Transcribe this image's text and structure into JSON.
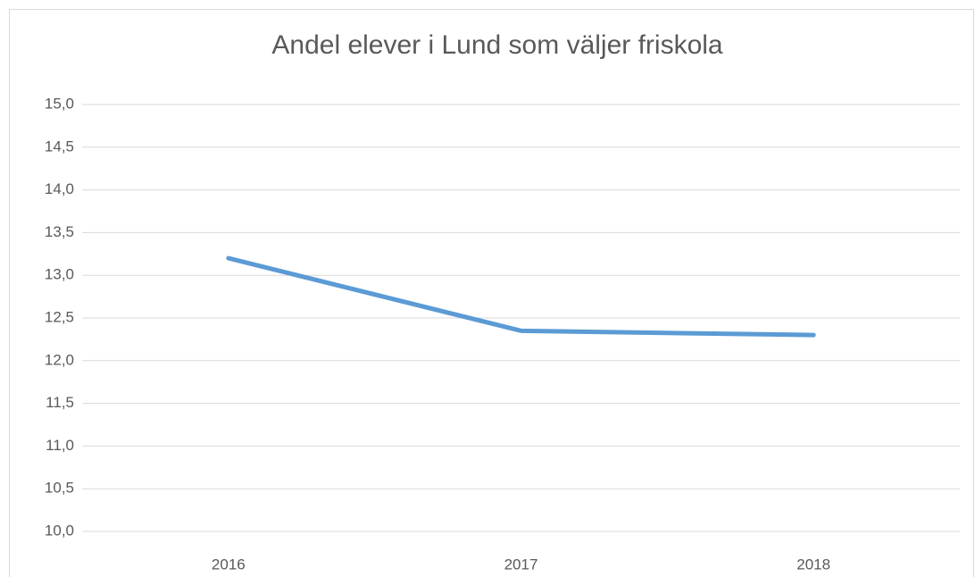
{
  "chart_data": {
    "type": "line",
    "title": "Andel elever i Lund som väljer friskola",
    "categories": [
      "2016",
      "2017",
      "2018"
    ],
    "series": [
      {
        "name": "Andel",
        "color": "#5b9bd5",
        "values": [
          13.2,
          12.35,
          12.3
        ]
      }
    ],
    "ylim": [
      10,
      15
    ],
    "yticks": [
      {
        "value": 10,
        "label": "10,0"
      },
      {
        "value": 10.5,
        "label": "10,5"
      },
      {
        "value": 11,
        "label": "11,0"
      },
      {
        "value": 11.5,
        "label": "11,5"
      },
      {
        "value": 12,
        "label": "12,0"
      },
      {
        "value": 12.5,
        "label": "12,5"
      },
      {
        "value": 13,
        "label": "13,0"
      },
      {
        "value": 13.5,
        "label": "13,5"
      },
      {
        "value": 14,
        "label": "14,0"
      },
      {
        "value": 14.5,
        "label": "14,5"
      },
      {
        "value": 15,
        "label": "15,0"
      }
    ],
    "grid": true
  }
}
